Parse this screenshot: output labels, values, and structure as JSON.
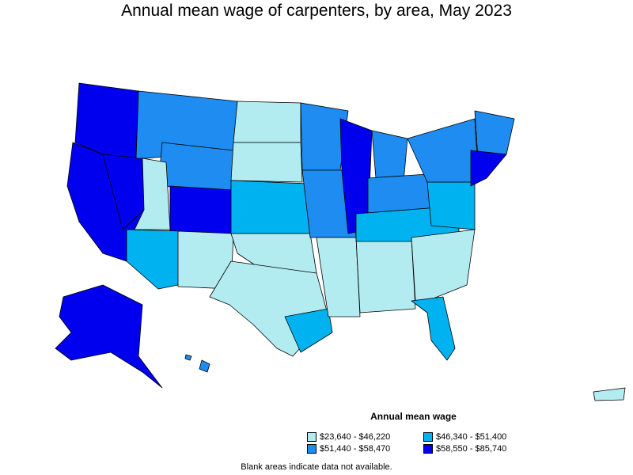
{
  "title": "Annual mean wage of carpenters, by area, May 2023",
  "legend": {
    "title": "Annual mean wage",
    "items": [
      {
        "label": "$23,640 - $46,220",
        "color": "#b3ecf0"
      },
      {
        "label": "$46,340 - $51,400",
        "color": "#00b2f0"
      },
      {
        "label": "$51,440 - $58,470",
        "color": "#1e8cf0"
      },
      {
        "label": "$58,550 - $85,740",
        "color": "#0000ef"
      }
    ]
  },
  "note": "Blank areas indicate data not available."
}
